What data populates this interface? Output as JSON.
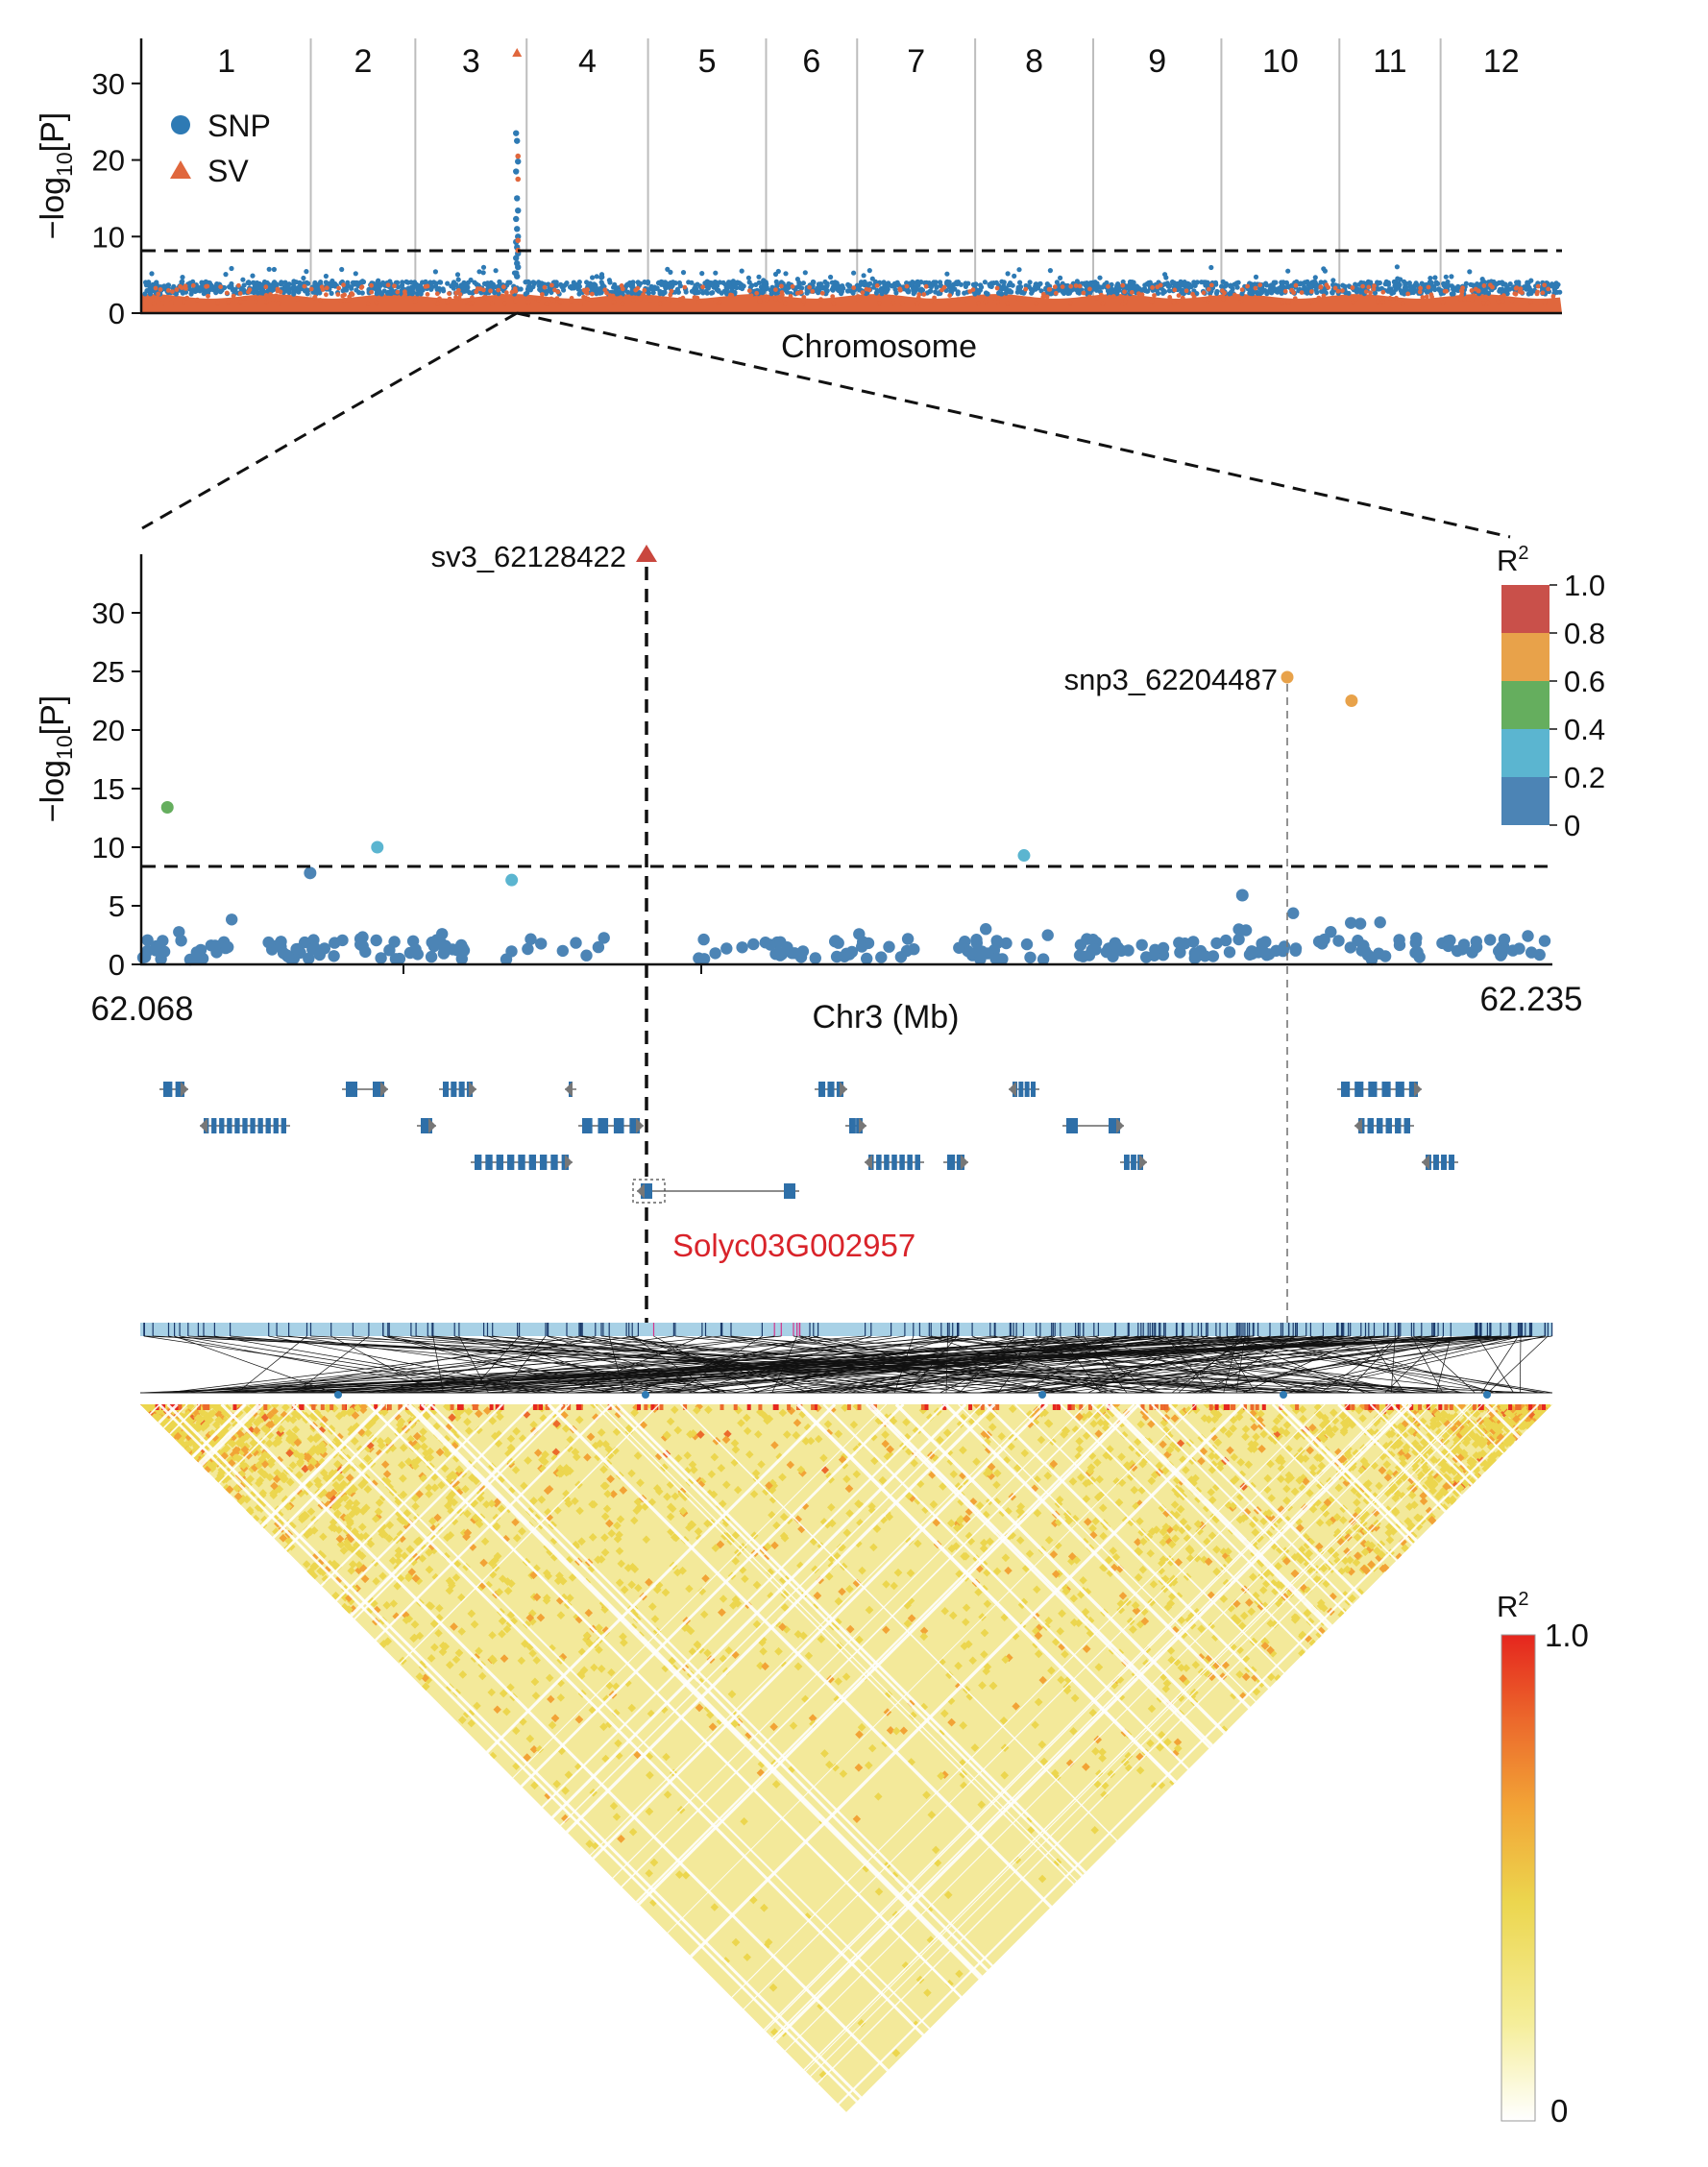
{
  "chart_data": [
    {
      "type": "scatter",
      "panel": "manhattan",
      "ylabel": "−log10[P]",
      "ylabel_parts": {
        "base": "−log",
        "sub": "10",
        "tail": "[P]"
      },
      "xlabel": "Chromosome",
      "yticks": [
        "0",
        "10",
        "20",
        "30"
      ],
      "ylim": [
        0,
        35
      ],
      "threshold": 8,
      "chromosomes": [
        "1",
        "2",
        "3",
        "4",
        "5",
        "6",
        "7",
        "8",
        "9",
        "10",
        "11",
        "12"
      ],
      "chromosome_relative_sizes": [
        1.0,
        0.62,
        0.66,
        0.72,
        0.7,
        0.54,
        0.7,
        0.7,
        0.76,
        0.7,
        0.6,
        0.72
      ],
      "legend": {
        "position": "top-left",
        "items": [
          {
            "label": "SNP",
            "shape": "circle",
            "color": "#2e7ab4"
          },
          {
            "label": "SV",
            "shape": "triangle",
            "color": "#e0673d"
          }
        ]
      },
      "peak": {
        "chromosome": "3",
        "max_snp": 23.5,
        "sv": 34
      }
    },
    {
      "type": "scatter",
      "panel": "regional-association",
      "ylabel": "−log10[P]",
      "ylabel_parts": {
        "base": "−log",
        "sub": "10",
        "tail": "[P]"
      },
      "xlabel": "Chr3 (Mb)",
      "xlim": [
        62.068,
        62.235
      ],
      "xtick_labels": [
        "62.068",
        "62.235"
      ],
      "yticks": [
        "0",
        "5",
        "10",
        "15",
        "20",
        "25",
        "30"
      ],
      "ylim": [
        0,
        35
      ],
      "threshold": 8,
      "lead_sv": {
        "label": "sv3_62128422",
        "x": 62.128422,
        "y": 34
      },
      "lead_snp": {
        "label": "snp3_62204487",
        "x": 62.204487,
        "y": 23.7
      },
      "highlighted_points": [
        {
          "x": 62.071,
          "y": 13.4,
          "r2": 0.5
        },
        {
          "x": 62.096,
          "y": 10.0,
          "r2": 0.3
        },
        {
          "x": 62.088,
          "y": 7.8,
          "r2": 0.1
        },
        {
          "x": 62.112,
          "y": 7.2,
          "r2": 0.3
        },
        {
          "x": 62.173,
          "y": 9.3,
          "r2": 0.3
        },
        {
          "x": 62.212,
          "y": 22.5,
          "r2": 0.7
        },
        {
          "x": 62.199,
          "y": 5.9,
          "r2": 0.1
        }
      ],
      "r2_legend": {
        "title": "R2",
        "title_parts": {
          "base": "R",
          "sup": "2"
        },
        "tick_labels": [
          "1.0",
          "0.8",
          "0.6",
          "0.4",
          "0.2",
          "0"
        ],
        "bins": [
          {
            "range": [
              0.8,
              1.0
            ],
            "color": "#c9504a"
          },
          {
            "range": [
              0.6,
              0.8
            ],
            "color": "#e8a24a"
          },
          {
            "range": [
              0.4,
              0.6
            ],
            "color": "#65ae5e"
          },
          {
            "range": [
              0.2,
              0.4
            ],
            "color": "#5bb5d0"
          },
          {
            "range": [
              0.0,
              0.2
            ],
            "color": "#4c84b5"
          }
        ]
      }
    },
    {
      "type": "heatmap",
      "panel": "linkage-disequilibrium",
      "legend": {
        "title": "R2",
        "title_parts": {
          "base": "R",
          "sup": "2"
        },
        "max_label": "1.0",
        "min_label": "0",
        "colors": [
          "#ffffff",
          "#f5ee9a",
          "#ecd64e",
          "#f2a336",
          "#ec6a2c",
          "#e5261e"
        ]
      }
    }
  ],
  "gene_track": {
    "highlighted_gene": "Solyc03G002957",
    "highlight_color": "#d9232a",
    "gene_color": "#2e6fa8"
  },
  "colors": {
    "snp": "#2e7ab4",
    "sv": "#e0673d",
    "lead_sv": "#c9473e",
    "threshold_line": "#111111"
  }
}
